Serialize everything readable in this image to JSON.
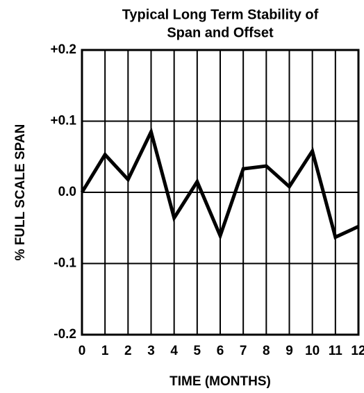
{
  "chart_data": {
    "type": "line",
    "title": [
      "Typical Long Term Stability of",
      "Span and Offset"
    ],
    "xlabel": "TIME (MONTHS)",
    "ylabel": "% FULL SCALE SPAN",
    "x": [
      0,
      1,
      2,
      3,
      4,
      5,
      6,
      7,
      8,
      9,
      10,
      11,
      12
    ],
    "series": [
      {
        "name": null,
        "color": "#000000",
        "values": [
          0.0,
          0.053,
          0.018,
          0.085,
          -0.036,
          0.015,
          -0.061,
          0.033,
          0.037,
          0.008,
          0.058,
          -0.063,
          -0.048
        ]
      }
    ],
    "xlim": [
      0,
      12
    ],
    "xticks": [
      0,
      1,
      2,
      3,
      4,
      5,
      6,
      7,
      8,
      9,
      10,
      11,
      12
    ],
    "ylim": [
      -0.2,
      0.2
    ],
    "yticks": [
      {
        "value": -0.2,
        "label": "-0.2"
      },
      {
        "value": -0.1,
        "label": "-0.1"
      },
      {
        "value": 0,
        "label": "0.0"
      },
      {
        "value": 0.1,
        "label": "+0.1"
      },
      {
        "value": 0.2,
        "label": "+0.2"
      }
    ],
    "grid": true
  }
}
